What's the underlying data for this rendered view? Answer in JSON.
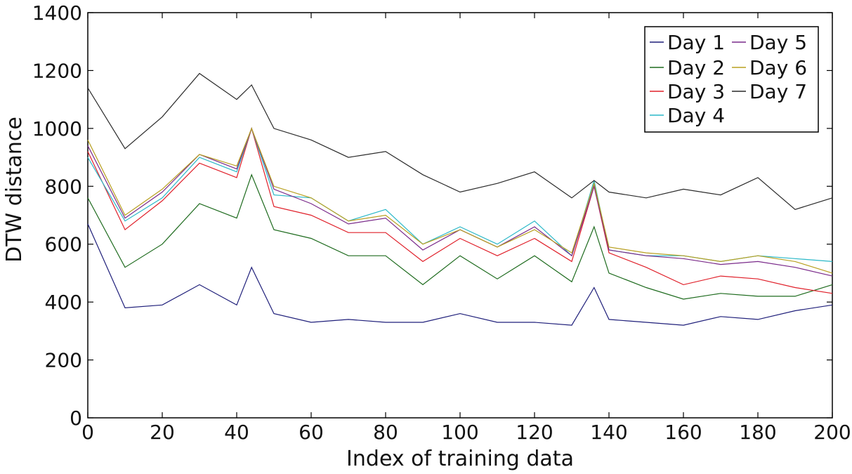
{
  "chart_data": {
    "type": "line",
    "title": "",
    "xlabel": "Index of training data",
    "ylabel": "DTW distance",
    "xlim": [
      0,
      200
    ],
    "ylim": [
      0,
      1400
    ],
    "xticks": [
      0,
      20,
      40,
      60,
      80,
      100,
      120,
      140,
      160,
      180,
      200
    ],
    "yticks": [
      0,
      200,
      400,
      600,
      800,
      1000,
      1200,
      1400
    ],
    "grid": false,
    "legend_position": "top-right",
    "x": [
      0,
      10,
      20,
      30,
      40,
      44,
      50,
      60,
      70,
      80,
      90,
      100,
      110,
      120,
      130,
      136,
      140,
      150,
      160,
      170,
      180,
      190,
      200
    ],
    "series": [
      {
        "name": "Day 1",
        "color": "#1f1f7a",
        "values": [
          670,
          380,
          390,
          460,
          390,
          520,
          360,
          330,
          340,
          330,
          330,
          360,
          330,
          330,
          320,
          450,
          340,
          330,
          320,
          350,
          340,
          370,
          390
        ]
      },
      {
        "name": "Day 2",
        "color": "#1e6b1e",
        "values": [
          760,
          520,
          600,
          740,
          690,
          840,
          650,
          620,
          560,
          560,
          460,
          560,
          480,
          560,
          470,
          660,
          500,
          450,
          410,
          430,
          420,
          420,
          460
        ]
      },
      {
        "name": "Day 3",
        "color": "#e0202a",
        "values": [
          920,
          650,
          750,
          880,
          830,
          1000,
          730,
          700,
          640,
          640,
          540,
          620,
          560,
          620,
          540,
          800,
          570,
          520,
          460,
          490,
          480,
          450,
          430
        ]
      },
      {
        "name": "Day 4",
        "color": "#2ab8c8",
        "values": [
          900,
          680,
          760,
          900,
          850,
          1000,
          770,
          760,
          680,
          720,
          600,
          660,
          600,
          680,
          560,
          820,
          580,
          560,
          560,
          540,
          560,
          550,
          540
        ]
      },
      {
        "name": "Day 5",
        "color": "#7a2a8a",
        "values": [
          940,
          690,
          780,
          910,
          860,
          1000,
          790,
          740,
          670,
          690,
          580,
          650,
          590,
          660,
          560,
          800,
          580,
          560,
          550,
          530,
          540,
          520,
          490
        ]
      },
      {
        "name": "Day 6",
        "color": "#b8a020",
        "values": [
          960,
          700,
          790,
          910,
          870,
          1000,
          800,
          760,
          680,
          700,
          600,
          650,
          590,
          650,
          570,
          810,
          590,
          570,
          560,
          540,
          560,
          540,
          500
        ]
      },
      {
        "name": "Day 7",
        "color": "#2a2a2a",
        "values": [
          1140,
          930,
          1040,
          1190,
          1100,
          1150,
          1000,
          960,
          900,
          920,
          840,
          780,
          810,
          850,
          760,
          820,
          780,
          760,
          790,
          770,
          830,
          720,
          760
        ]
      }
    ]
  }
}
